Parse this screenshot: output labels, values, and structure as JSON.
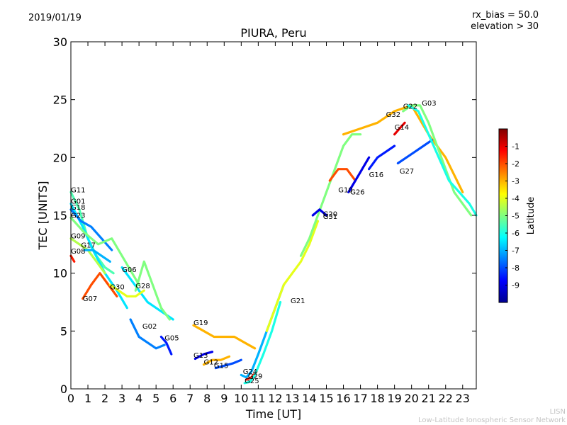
{
  "header": {
    "date": "2019/01/19",
    "rx_bias_label": "rx_bias = 50.0",
    "elevation_label": "elevation > 30"
  },
  "footer": {
    "line1": "LISN",
    "line2": "Low-Latitude Ionospheric Sensor Network"
  },
  "chart_data": {
    "type": "scatter",
    "title": "PIURA, Peru",
    "xlabel": "Time [UT]",
    "ylabel": "TEC [UNITS]",
    "xlim": [
      0,
      23.8
    ],
    "ylim": [
      0,
      30
    ],
    "xticks": [
      0,
      1,
      2,
      3,
      4,
      5,
      6,
      7,
      8,
      9,
      10,
      11,
      12,
      13,
      14,
      15,
      16,
      17,
      18,
      19,
      20,
      21,
      22,
      23
    ],
    "yticks": [
      0,
      5,
      10,
      15,
      20,
      25,
      30
    ],
    "grid": false,
    "colorbar": {
      "label": "Latitude",
      "range": [
        -10,
        0
      ],
      "ticks": [
        -1,
        -2,
        -3,
        -4,
        -5,
        -6,
        -7,
        -8,
        -9
      ],
      "colormap": [
        "#00008f",
        "#0000ff",
        "#0080ff",
        "#00ffff",
        "#80ff80",
        "#ffff00",
        "#ff8000",
        "#ff0000",
        "#800000"
      ]
    },
    "series": [
      {
        "name": "G11",
        "lat": -5.5,
        "x": [
          0,
          0.5,
          1,
          1.5,
          2,
          2.5
        ],
        "y": [
          17,
          15.5,
          13,
          11.5,
          10.5,
          10
        ]
      },
      {
        "name": "G01",
        "lat": -6.5,
        "x": [
          0,
          0.7,
          1.3,
          2,
          2.7,
          3.3
        ],
        "y": [
          16,
          14,
          12,
          10,
          8.5,
          7
        ]
      },
      {
        "name": "G18",
        "lat": -7.5,
        "x": [
          0,
          0.6,
          1.2,
          1.8,
          2.4
        ],
        "y": [
          15.5,
          14.5,
          14,
          13,
          12
        ]
      },
      {
        "name": "G23",
        "lat": -5,
        "x": [
          0,
          0.8,
          1.6,
          2.4,
          3.2,
          4
        ],
        "y": [
          14.8,
          13.5,
          12.5,
          13,
          11,
          9
        ]
      },
      {
        "name": "G09",
        "lat": -4.5,
        "x": [
          0,
          0.5,
          1,
          1.5,
          2
        ],
        "y": [
          13,
          12.5,
          12,
          11,
          10
        ]
      },
      {
        "name": "G08",
        "lat": -1.5,
        "x": [
          0,
          0.2
        ],
        "y": [
          11.5,
          11
        ]
      },
      {
        "name": "G17",
        "lat": -7,
        "x": [
          0.8,
          1.3,
          1.8,
          2.3
        ],
        "y": [
          12,
          12,
          11.5,
          11
        ]
      },
      {
        "name": "G07",
        "lat": -2,
        "x": [
          0.7,
          1.2,
          1.7,
          2.2,
          2.7
        ],
        "y": [
          7.8,
          9,
          10,
          9,
          8
        ]
      },
      {
        "name": "G06",
        "lat": -6.5,
        "x": [
          3,
          3.5,
          4,
          4.5,
          5,
          5.5,
          6
        ],
        "y": [
          10.5,
          9.5,
          8.5,
          7.5,
          7,
          6.5,
          6
        ]
      },
      {
        "name": "G30",
        "lat": -4,
        "x": [
          2.3,
          2.8,
          3.3,
          3.8,
          4.3
        ],
        "y": [
          9,
          8.5,
          8,
          8,
          8.5
        ]
      },
      {
        "name": "G28",
        "lat": -5,
        "x": [
          3.8,
          4.3,
          4.8,
          5.3,
          5.8
        ],
        "y": [
          8.5,
          11,
          9,
          7,
          6
        ]
      },
      {
        "name": "G02",
        "lat": -7.5,
        "x": [
          3.5,
          4,
          4.5,
          5,
          5.5
        ],
        "y": [
          6,
          4.5,
          4,
          3.5,
          3.8
        ]
      },
      {
        "name": "G05",
        "lat": -8.5,
        "x": [
          5.3,
          5.6,
          5.9
        ],
        "y": [
          4.5,
          4,
          3
        ]
      },
      {
        "name": "G19",
        "lat": -3,
        "x": [
          7.2,
          7.8,
          8.4,
          9,
          9.6,
          10.2,
          10.8
        ],
        "y": [
          5.5,
          5,
          4.5,
          4.5,
          4.5,
          4,
          3.5
        ]
      },
      {
        "name": "G13",
        "lat": -9,
        "x": [
          7.3,
          7.8,
          8.3
        ],
        "y": [
          2.6,
          3,
          3.2
        ]
      },
      {
        "name": "G12",
        "lat": -3,
        "x": [
          7.8,
          8.3,
          8.8,
          9.3
        ],
        "y": [
          2.1,
          2.5,
          2.5,
          2.8
        ]
      },
      {
        "name": "G15",
        "lat": -8,
        "x": [
          8.5,
          9,
          9.5,
          10
        ],
        "y": [
          1.8,
          2,
          2.2,
          2.5
        ]
      },
      {
        "name": "G24",
        "lat": -7,
        "x": [
          10,
          10.3,
          10.6,
          11,
          11.5,
          12,
          12.5
        ],
        "y": [
          1.2,
          1,
          1.5,
          3,
          5,
          7,
          9
        ]
      },
      {
        "name": "G29",
        "lat": -1.5,
        "x": [
          10.3,
          10.6,
          10.9
        ],
        "y": [
          0.8,
          1,
          1.5
        ]
      },
      {
        "name": "G25",
        "lat": -6,
        "x": [
          10.2,
          10.5,
          10.8,
          11.3,
          11.8,
          12.3
        ],
        "y": [
          0.5,
          0.6,
          1.2,
          3,
          5,
          7.5
        ]
      },
      {
        "name": "G21",
        "lat": -4,
        "x": [
          11.5,
          12,
          12.5,
          13,
          13.5,
          14,
          14.5
        ],
        "y": [
          5,
          7,
          9,
          10,
          11,
          12.5,
          14.5
        ]
      },
      {
        "name": "G20",
        "lat": -5,
        "x": [
          13.5,
          14,
          14.5,
          15,
          15.5,
          16,
          16.5,
          17
        ],
        "y": [
          11.5,
          13,
          15,
          17,
          19,
          21,
          22,
          22
        ]
      },
      {
        "name": "G31",
        "lat": -9,
        "x": [
          14.2,
          14.6,
          15
        ],
        "y": [
          15,
          15.5,
          15
        ]
      },
      {
        "name": "G10",
        "lat": -2,
        "x": [
          15.2,
          15.7,
          16.2,
          16.7
        ],
        "y": [
          18,
          19,
          19,
          18
        ]
      },
      {
        "name": "G26",
        "lat": -9,
        "x": [
          16.3,
          16.7,
          17.1,
          17.5
        ],
        "y": [
          17,
          18,
          19,
          20
        ]
      },
      {
        "name": "G16",
        "lat": -8.5,
        "x": [
          17.5,
          18,
          18.5,
          19
        ],
        "y": [
          19,
          20,
          20.5,
          21
        ]
      },
      {
        "name": "G32",
        "lat": -3,
        "x": [
          16,
          17,
          18,
          19,
          20,
          21,
          22,
          23
        ],
        "y": [
          22,
          22.5,
          23,
          24,
          24.5,
          22,
          20,
          17
        ]
      },
      {
        "name": "G14",
        "lat": -1,
        "x": [
          19,
          19.3,
          19.6
        ],
        "y": [
          22,
          22.5,
          23
        ]
      },
      {
        "name": "G27",
        "lat": -8,
        "x": [
          19.2,
          19.7,
          20.2,
          20.7,
          21.2
        ],
        "y": [
          19.5,
          20,
          20.5,
          21,
          21.5
        ]
      },
      {
        "name": "G22",
        "lat": -5,
        "x": [
          19.5,
          20,
          20.5,
          21,
          21.5,
          22,
          22.5,
          23,
          23.5
        ],
        "y": [
          24,
          24.5,
          24.5,
          23,
          21,
          19,
          17,
          16,
          15
        ]
      },
      {
        "name": "G03",
        "lat": -6,
        "x": [
          19.8,
          20.4,
          21,
          21.6,
          22.2,
          22.8,
          23.4,
          23.8
        ],
        "y": [
          24.5,
          24,
          22,
          20,
          18,
          17,
          16,
          15
        ]
      }
    ],
    "annotations": [
      {
        "text": "G11",
        "x": 0.0,
        "y": 17.0
      },
      {
        "text": "G01",
        "x": 0.0,
        "y": 16.0
      },
      {
        "text": "G18",
        "x": 0.0,
        "y": 15.5
      },
      {
        "text": "G23",
        "x": 0.0,
        "y": 14.8
      },
      {
        "text": "G09",
        "x": 0.0,
        "y": 13.0
      },
      {
        "text": "G08",
        "x": 0.0,
        "y": 11.7
      },
      {
        "text": "G17",
        "x": 0.6,
        "y": 12.2
      },
      {
        "text": "G07",
        "x": 0.7,
        "y": 7.6
      },
      {
        "text": "G06",
        "x": 3.0,
        "y": 10.1
      },
      {
        "text": "G30",
        "x": 2.3,
        "y": 8.6
      },
      {
        "text": "G28",
        "x": 3.8,
        "y": 8.7
      },
      {
        "text": "G02",
        "x": 4.2,
        "y": 5.2
      },
      {
        "text": "G05",
        "x": 5.5,
        "y": 4.2
      },
      {
        "text": "G19",
        "x": 7.2,
        "y": 5.5
      },
      {
        "text": "G13",
        "x": 7.2,
        "y": 2.7
      },
      {
        "text": "G12",
        "x": 7.8,
        "y": 2.1
      },
      {
        "text": "G15",
        "x": 8.4,
        "y": 1.8
      },
      {
        "text": "G24",
        "x": 10.1,
        "y": 1.3
      },
      {
        "text": "G29",
        "x": 10.4,
        "y": 0.9
      },
      {
        "text": "G25",
        "x": 10.2,
        "y": 0.5
      },
      {
        "text": "G21",
        "x": 12.9,
        "y": 7.4
      },
      {
        "text": "G20",
        "x": 14.8,
        "y": 14.9
      },
      {
        "text": "G31",
        "x": 14.8,
        "y": 14.7
      },
      {
        "text": "G10",
        "x": 15.7,
        "y": 17.0
      },
      {
        "text": "G26",
        "x": 16.4,
        "y": 16.8
      },
      {
        "text": "G16",
        "x": 17.5,
        "y": 18.3
      },
      {
        "text": "G32",
        "x": 18.5,
        "y": 23.5
      },
      {
        "text": "G14",
        "x": 19.0,
        "y": 22.4
      },
      {
        "text": "G27",
        "x": 19.3,
        "y": 18.6
      },
      {
        "text": "G22",
        "x": 19.5,
        "y": 24.2
      },
      {
        "text": "G03",
        "x": 20.6,
        "y": 24.5
      }
    ]
  }
}
